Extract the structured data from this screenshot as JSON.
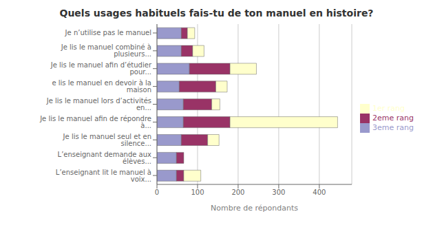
{
  "chart_data": {
    "type": "bar",
    "orientation": "horizontal",
    "stacked": true,
    "title": "Quels usages habituels fais-tu de ton manuel en histoire?",
    "xlabel": "Nombre de répondants",
    "categories": [
      "Je n’utilise pas le manuel",
      "Je lis le manuel combiné à plusieurs...",
      "Je lis le manuel afin d’étudier pour...",
      "e lis le manuel en devoir à la maison",
      "Je lis le manuel lors d’activités en...",
      "Je lis le manuel afin de répondre à...",
      "Je lis le manuel seul et en silence...",
      "L’enseignant demande aux élèves...",
      "L’enseignant lit le manuel à voix..."
    ],
    "series": [
      {
        "name": "3eme rang",
        "color": "#9999cc",
        "values": [
          60,
          60,
          80,
          55,
          65,
          65,
          60,
          48,
          48
        ]
      },
      {
        "name": "2eme rang",
        "color": "#993366",
        "values": [
          15,
          28,
          100,
          90,
          70,
          115,
          65,
          18,
          18
        ]
      },
      {
        "name": "1er rang",
        "color": "#ffffcc",
        "values": [
          18,
          28,
          65,
          28,
          20,
          265,
          28,
          0,
          42
        ]
      }
    ],
    "xlim": [
      0,
      480
    ],
    "xticks": [
      0,
      100,
      200,
      300,
      400
    ],
    "grid": true,
    "legend": "right"
  }
}
